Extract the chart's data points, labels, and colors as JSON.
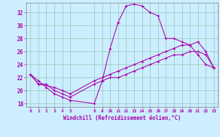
{
  "xlabel": "Windchill (Refroidissement éolien,°C)",
  "bg_color": "#cceeff",
  "line_color": "#aa00aa",
  "grid_color": "#99ccbb",
  "ylim": [
    17.5,
    33.5
  ],
  "xlim": [
    -0.5,
    23.5
  ],
  "yticks": [
    18,
    20,
    22,
    24,
    26,
    28,
    30,
    32
  ],
  "xtick_positions": [
    0,
    1,
    2,
    3,
    4,
    5,
    8,
    9,
    10,
    11,
    12,
    13,
    14,
    15,
    16,
    17,
    18,
    19,
    20,
    21,
    22,
    23
  ],
  "xtick_labels": [
    "0",
    "1",
    "2",
    "3",
    "4",
    "5",
    "8",
    "9",
    "10",
    "11",
    "12",
    "13",
    "14",
    "15",
    "16",
    "17",
    "18",
    "19",
    "20",
    "21",
    "22",
    "23"
  ],
  "series1_x": [
    0,
    1,
    2,
    3,
    4,
    5,
    8,
    9,
    10,
    11,
    12,
    13,
    14,
    15,
    16,
    17,
    18,
    19,
    20,
    21,
    22,
    23
  ],
  "series1_y": [
    22.5,
    21.5,
    20.5,
    19.5,
    19.0,
    18.5,
    18.0,
    21.5,
    26.5,
    30.5,
    33.0,
    33.3,
    33.0,
    32.0,
    31.5,
    28.0,
    28.0,
    27.5,
    27.0,
    25.5,
    24.0,
    23.5
  ],
  "series2_x": [
    0,
    1,
    3,
    4,
    5,
    8,
    9,
    10,
    11,
    12,
    13,
    14,
    15,
    16,
    17,
    18,
    19,
    20,
    21,
    22,
    23
  ],
  "series2_y": [
    22.5,
    21.0,
    20.5,
    20.0,
    19.5,
    21.5,
    22.0,
    22.5,
    23.0,
    23.5,
    24.0,
    24.5,
    25.0,
    25.5,
    26.0,
    26.5,
    27.0,
    27.0,
    27.5,
    26.0,
    23.5
  ],
  "series3_x": [
    0,
    1,
    2,
    3,
    4,
    5,
    8,
    9,
    10,
    11,
    12,
    13,
    14,
    15,
    16,
    17,
    18,
    19,
    20,
    21,
    22,
    23
  ],
  "series3_y": [
    22.5,
    21.0,
    21.0,
    20.0,
    19.5,
    19.0,
    21.0,
    21.5,
    22.0,
    22.0,
    22.5,
    23.0,
    23.5,
    24.0,
    24.5,
    25.0,
    25.5,
    25.5,
    26.0,
    26.0,
    25.5,
    23.5
  ]
}
